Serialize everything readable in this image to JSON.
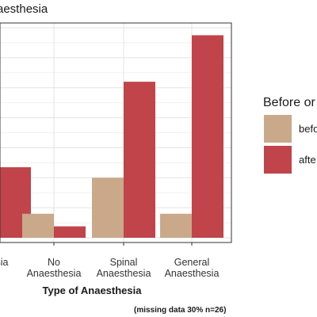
{
  "chart_data": {
    "type": "bar",
    "title": "aesthesia",
    "xlabel": "Type of Anaesthesia",
    "ylabel": "",
    "categories": [
      "esia",
      "No\nAnaesthesia",
      "Spinal\nAnaesthesia",
      "General\nAnaesthesia"
    ],
    "series": [
      {
        "name": "befo",
        "color": "#c9a98a",
        "values": [
          null,
          0.8,
          2.0,
          0.8
        ]
      },
      {
        "name": "afte",
        "color": "#c0444a",
        "values": [
          2.35,
          0.38,
          5.2,
          6.75
        ]
      }
    ],
    "ylim": [
      0,
      7
    ],
    "grid": true,
    "legend": {
      "title": "Before or",
      "placement": "right"
    },
    "note": "(missing data 30% n=26)"
  }
}
